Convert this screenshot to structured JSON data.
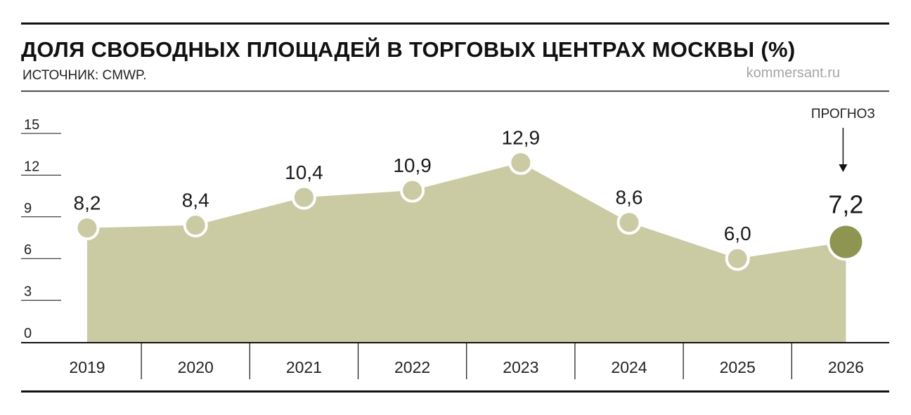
{
  "colors": {
    "area": "#cacba3",
    "point": "#cacba3",
    "forecast_point": "#8e9550",
    "rule": "#111111"
  },
  "header": {
    "title": "ДОЛЯ СВОБОДНЫХ ПЛОЩАДЕЙ В ТОРГОВЫХ ЦЕНТРАХ МОСКВЫ (%)",
    "source": "ИСТОЧНИК: CMWP.",
    "brand": "kommersant.ru"
  },
  "chart_data": {
    "type": "area",
    "categories": [
      "2019",
      "2020",
      "2021",
      "2022",
      "2023",
      "2024",
      "2025",
      "2026"
    ],
    "values": [
      8.2,
      8.4,
      10.4,
      10.9,
      12.9,
      8.6,
      6.0,
      7.2
    ],
    "value_labels": [
      "8,2",
      "8,4",
      "10,4",
      "10,9",
      "12,9",
      "8,6",
      "6,0",
      "7,2"
    ],
    "yticks": [
      "0",
      "3",
      "6",
      "9",
      "12",
      "15"
    ],
    "ytick_values": [
      0,
      3,
      6,
      9,
      12,
      15
    ],
    "ylim": [
      0,
      15
    ],
    "grid": false,
    "forecast_category": "2026",
    "annotation": "ПРОГНОЗ"
  }
}
